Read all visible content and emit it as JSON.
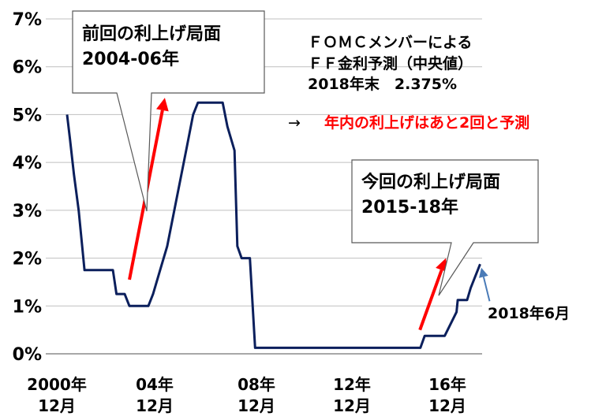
{
  "chart_data": {
    "type": "line",
    "title": "",
    "xlabel": "",
    "ylabel": "",
    "ylim": [
      0,
      7
    ],
    "y_tick_labels": [
      "0%",
      "1%",
      "2%",
      "3%",
      "4%",
      "5%",
      "6%",
      "7%"
    ],
    "x_tick_labels": [
      {
        "year": "2000年",
        "month": "12月"
      },
      {
        "year": "04年",
        "month": "12月"
      },
      {
        "year": "08年",
        "month": "12月"
      },
      {
        "year": "12年",
        "month": "12月"
      },
      {
        "year": "16年",
        "month": "12月"
      }
    ],
    "grid": true,
    "series": [
      {
        "color": "#0b1f5c",
        "points": [
          [
            2000.96,
            5.0
          ],
          [
            2001.08,
            4.5
          ],
          [
            2001.25,
            3.75
          ],
          [
            2001.45,
            3.0
          ],
          [
            2001.7,
            1.75
          ],
          [
            2002.0,
            1.75
          ],
          [
            2002.5,
            1.75
          ],
          [
            2002.9,
            1.75
          ],
          [
            2003.05,
            1.25
          ],
          [
            2003.4,
            1.25
          ],
          [
            2003.6,
            1.0
          ],
          [
            2004.0,
            1.0
          ],
          [
            2004.4,
            1.0
          ],
          [
            2004.6,
            1.25
          ],
          [
            2004.9,
            1.75
          ],
          [
            2005.2,
            2.25
          ],
          [
            2005.6,
            3.25
          ],
          [
            2006.0,
            4.25
          ],
          [
            2006.3,
            5.0
          ],
          [
            2006.5,
            5.25
          ],
          [
            2007.0,
            5.25
          ],
          [
            2007.55,
            5.25
          ],
          [
            2007.75,
            4.75
          ],
          [
            2008.05,
            4.25
          ],
          [
            2008.17,
            2.25
          ],
          [
            2008.35,
            2.0
          ],
          [
            2008.7,
            2.0
          ],
          [
            2008.92,
            0.125
          ],
          [
            2010.0,
            0.125
          ],
          [
            2012.0,
            0.125
          ],
          [
            2014.0,
            0.125
          ],
          [
            2015.92,
            0.125
          ],
          [
            2016.1,
            0.375
          ],
          [
            2016.5,
            0.375
          ],
          [
            2016.95,
            0.375
          ],
          [
            2017.2,
            0.625
          ],
          [
            2017.45,
            0.875
          ],
          [
            2017.5,
            1.125
          ],
          [
            2017.9,
            1.125
          ],
          [
            2018.05,
            1.375
          ],
          [
            2018.25,
            1.625
          ],
          [
            2018.45,
            1.875
          ]
        ]
      }
    ],
    "arrows": [
      {
        "color": "#ff0000",
        "from": [
          2003.6,
          1.55
        ],
        "to": [
          2005.1,
          5.35
        ]
      },
      {
        "color": "#ff0000",
        "from": [
          2015.9,
          0.5
        ],
        "to": [
          2017.0,
          2.0
        ]
      },
      {
        "color": "#4a7bb7",
        "from": [
          2018.85,
          1.1
        ],
        "to": [
          2018.5,
          1.8
        ]
      }
    ]
  },
  "annotations": {
    "prev_cycle": {
      "line1": "前回の利上げ局面",
      "line2": "2004-06年"
    },
    "current_cycle": {
      "line1": "今回の利上げ局面",
      "line2": "2015-18年"
    },
    "fomc": {
      "line1": "ＦＯＭＣメンバーによる",
      "line2": "ＦＦ金利予測（中央値）",
      "line3": "2018年末　2.375%"
    },
    "forecast": {
      "arrow": "→",
      "text": "年内の利上げはあと2回と予測"
    },
    "last_point": {
      "text": "2018年6月"
    }
  }
}
